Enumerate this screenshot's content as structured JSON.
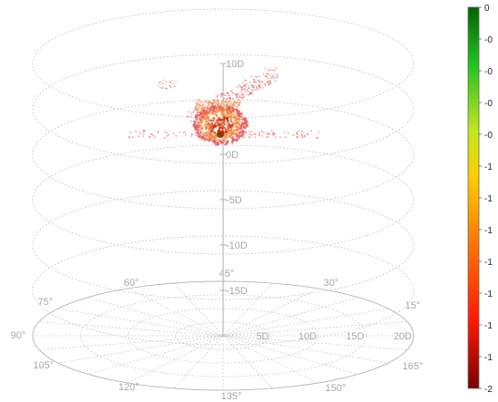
{
  "chart_data": {
    "type": "scatter",
    "kind": "3d-polar-dose-cloud",
    "vertical_axis": {
      "tick_labels": [
        "10D",
        "5D",
        "0D",
        "-5D",
        "-10D",
        "-15D"
      ],
      "values": [
        10,
        5,
        0,
        -5,
        -10,
        -15
      ],
      "range": [
        -15,
        10
      ]
    },
    "radial_axis": {
      "tick_labels": [
        "5D",
        "10D",
        "15D",
        "20D"
      ],
      "values": [
        5,
        10,
        15,
        20
      ],
      "range": [
        0,
        20
      ]
    },
    "angular_axis": {
      "tick_labels": [
        "15°",
        "30°",
        "45°",
        "60°",
        "75°",
        "90°",
        "105°",
        "120°",
        "135°",
        "150°",
        "165°"
      ],
      "values": [
        15,
        30,
        45,
        60,
        75,
        90,
        105,
        120,
        135,
        150,
        165
      ]
    },
    "cloud_center": {
      "r": 0.5,
      "theta": 0,
      "z": 2
    },
    "grid": true,
    "colorbar": {
      "position": "right",
      "tick_labels": [
        "0",
        "-0",
        "-0",
        "-0",
        "-0",
        "-1",
        "-1",
        "-1",
        "-1",
        "-1",
        "-1",
        "-1",
        "-2"
      ],
      "range": [
        -2,
        0
      ],
      "colors": [
        "#006400",
        "#22c222",
        "#bfe620",
        "#ffcc00",
        "#ff7f00",
        "#ff2a00",
        "#7a0000"
      ]
    },
    "colors": {
      "cloud_core": "#d4380a",
      "cloud_mid": "#f08a3a",
      "cloud_edge": "#e85a5a",
      "center_dot": "#8a3b00"
    }
  }
}
